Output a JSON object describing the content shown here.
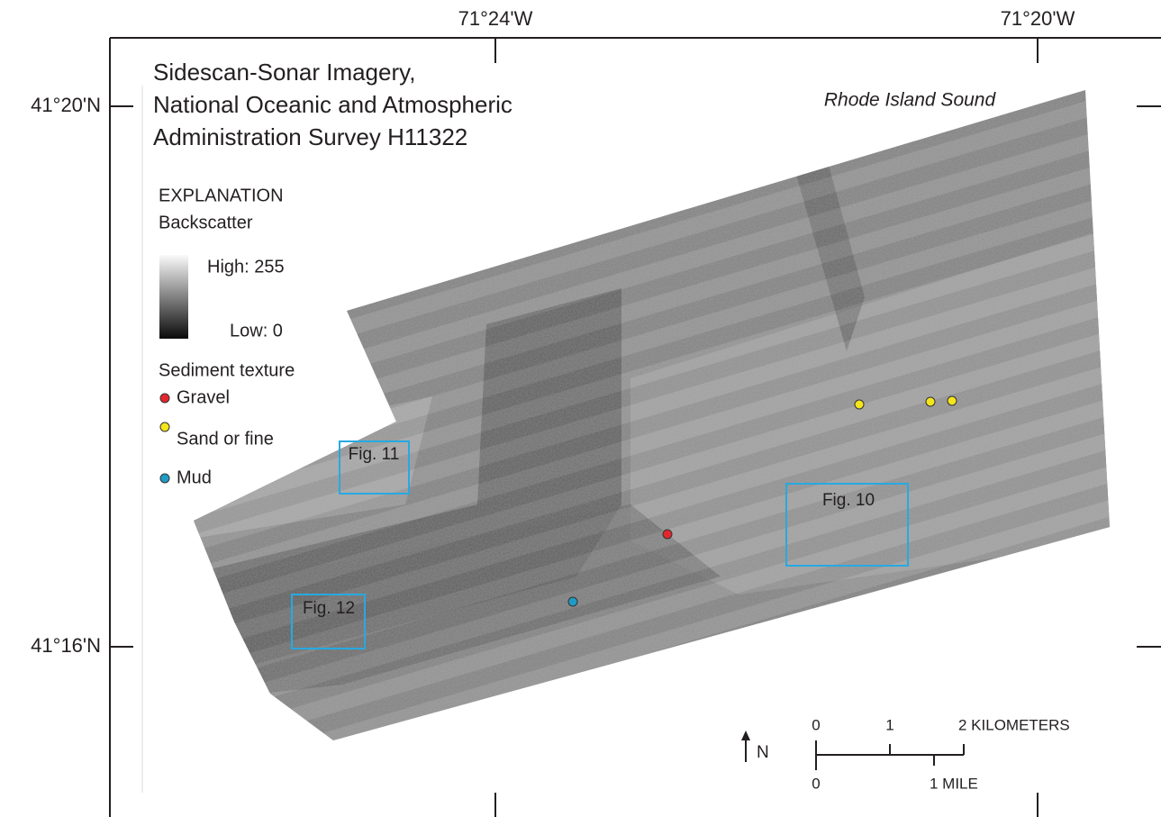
{
  "axes": {
    "top": [
      "71°24'W",
      "71°20'W"
    ],
    "left": [
      "41°20'N",
      "41°16'N"
    ]
  },
  "title": [
    "Sidescan-Sonar Imagery,",
    "National Oceanic and Atmospheric",
    "Administration Survey H11322"
  ],
  "region_label": "Rhode Island Sound",
  "legend": {
    "heading": "EXPLANATION",
    "backscatter": {
      "title": "Backscatter",
      "high": "High: 255",
      "low": "Low: 0"
    },
    "sediment": {
      "title": "Sediment texture",
      "items": [
        {
          "label": "Gravel",
          "color": "#e3262d"
        },
        {
          "label": "Sand or fine",
          "color": "#f5e51b"
        },
        {
          "label": "Mud",
          "color": "#1f9bc6"
        }
      ]
    }
  },
  "figures": [
    "Fig. 11",
    "Fig. 10",
    "Fig. 12"
  ],
  "scale": {
    "km": [
      "0",
      "1",
      "2 KILOMETERS"
    ],
    "mi": [
      "0",
      "1 MILE"
    ]
  },
  "north": "N"
}
